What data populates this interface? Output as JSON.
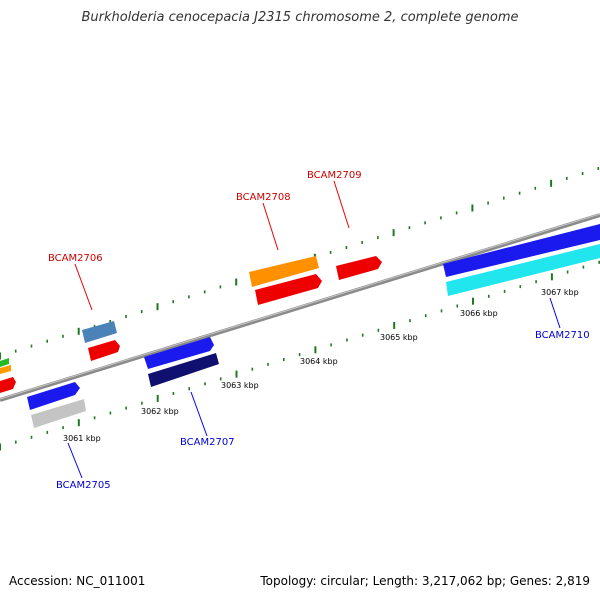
{
  "title": "Burkholderia cenocepacia J2315 chromosome 2, complete genome",
  "footer": {
    "accession": "Accession: NC_011001",
    "summary": "Topology: circular; Length: 3,217,062 bp; Genes: 2,819"
  },
  "colors": {
    "backbone": "#8a8a8a",
    "tick": "#1e7a1e",
    "forward_label": "#cc0000",
    "reverse_label": "#0000cc"
  },
  "kbp_labels": [
    "3061 kbp",
    "3062 kbp",
    "3063 kbp",
    "3064 kbp",
    "3065 kbp",
    "3066 kbp",
    "3067 kbp"
  ],
  "gene_labels": {
    "forward": [
      "BCAM2706",
      "BCAM2708",
      "BCAM2709"
    ],
    "reverse": [
      "BCAM2705",
      "BCAM2707",
      "BCAM2710"
    ]
  }
}
